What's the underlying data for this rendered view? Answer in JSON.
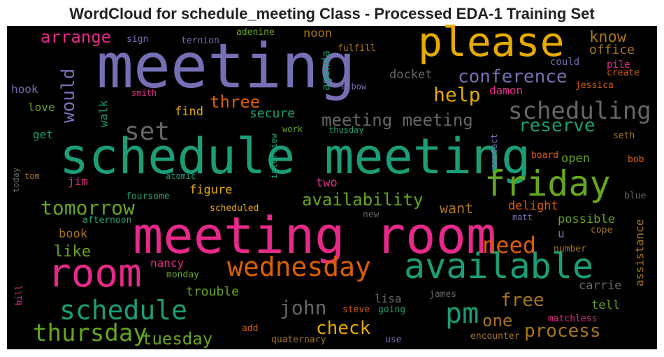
{
  "chart_data": {
    "type": "wordcloud",
    "title": "WordCloud for schedule_meeting Class - Processed EDA-1 Training Set",
    "background": "#000000",
    "words": [
      "meeting",
      "please",
      "schedule meeting",
      "meeting room",
      "room",
      "available",
      "friday",
      "scheduling",
      "wednesday",
      "schedule",
      "thursday",
      "pm",
      "set",
      "tomorrow",
      "need",
      "john",
      "check",
      "process",
      "tuesday",
      "free",
      "one",
      "availability",
      "conference",
      "help",
      "reserve",
      "meeting meeting",
      "three",
      "arrange",
      "would",
      "know",
      "office",
      "noon",
      "agenda",
      "docket",
      "damon",
      "could",
      "pile",
      "create",
      "jessica",
      "secure",
      "find",
      "walk",
      "hook",
      "love",
      "get",
      "smith",
      "elbow",
      "sign",
      "ternion",
      "adenine",
      "fulfill",
      "work",
      "thusday",
      "contact",
      "interview",
      "today",
      "tom",
      "jim",
      "atomic",
      "figure",
      "foursome",
      "two",
      "open",
      "board",
      "bob",
      "seth",
      "blue",
      "want",
      "delight",
      "possible",
      "matt",
      "u",
      "cope",
      "assistance",
      "scheduled",
      "new",
      "afternoon",
      "book",
      "like",
      "nancy",
      "monday",
      "trouble",
      "number",
      "carrie",
      "tell",
      "lisa",
      "james",
      "bill",
      "steve",
      "going",
      "matchless",
      "add",
      "quaternary",
      "use",
      "encounter"
    ],
    "colors": [
      "#7570b3",
      "#e6ab02",
      "#1b9e77",
      "#e7298a",
      "#e7298a",
      "#1b9e77",
      "#66a61e",
      "#666666",
      "#d95f02",
      "#1b9e77",
      "#66a61e",
      "#1b9e77",
      "#666666",
      "#66a61e",
      "#d95f02",
      "#666666",
      "#e6ab02",
      "#a6761d",
      "#66a61e",
      "#a6761d",
      "#a6761d",
      "#66a61e",
      "#7570b3",
      "#e6ab02",
      "#1b9e77",
      "#666666",
      "#d95f02",
      "#e7298a",
      "#7570b3",
      "#a6761d",
      "#a6761d",
      "#a6761d",
      "#1b9e77",
      "#666666",
      "#e7298a",
      "#7570b3",
      "#e7298a",
      "#d95f02",
      "#d95f02",
      "#1b9e77",
      "#e6ab02",
      "#1b9e77",
      "#7570b3",
      "#66a61e",
      "#1b9e77",
      "#e7298a",
      "#7570b3",
      "#7570b3",
      "#7570b3",
      "#66a61e",
      "#a6761d",
      "#66a61e",
      "#1b9e77",
      "#7570b3",
      "#1b9e77",
      "#666666",
      "#a6761d",
      "#e7298a",
      "#1b9e77",
      "#e6ab02",
      "#1b9e77",
      "#e7298a",
      "#66a61e",
      "#d95f02",
      "#d95f02",
      "#a6761d",
      "#666666",
      "#a6761d",
      "#d95f02",
      "#66a61e",
      "#7570b3",
      "#7570b3",
      "#a6761d",
      "#a6761d",
      "#e6ab02",
      "#666666",
      "#1b9e77",
      "#a6761d",
      "#66a61e",
      "#e7298a",
      "#66a61e",
      "#66a61e",
      "#a6761d",
      "#666666",
      "#66a61e",
      "#666666",
      "#666666",
      "#e7298a",
      "#d95f02",
      "#1b9e77",
      "#e7298a",
      "#d95f02",
      "#a6761d",
      "#7570b3",
      "#a6761d"
    ]
  }
}
